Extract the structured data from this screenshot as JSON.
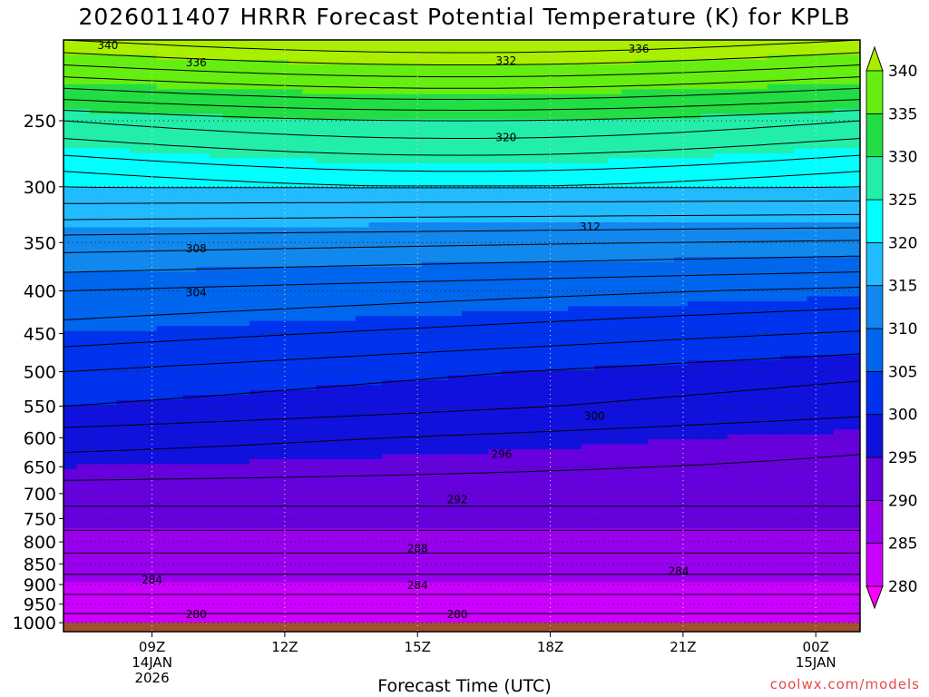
{
  "chart_data": {
    "type": "heatmap",
    "title": "2026011407 HRRR Forecast Potential Temperature (K) for KPLB",
    "xlabel": "Forecast Time (UTC)",
    "credit": "coolwx.com/models",
    "x_ticks": [
      {
        "label": "09Z",
        "date": "14JAN",
        "year": "2026",
        "hour": 9
      },
      {
        "label": "12Z",
        "date": "",
        "year": "",
        "hour": 12
      },
      {
        "label": "15Z",
        "date": "",
        "year": "",
        "hour": 15
      },
      {
        "label": "18Z",
        "date": "",
        "year": "",
        "hour": 18
      },
      {
        "label": "21Z",
        "date": "",
        "year": "",
        "hour": 21
      },
      {
        "label": "00Z",
        "date": "15JAN",
        "year": "",
        "hour": 24
      }
    ],
    "xlim": [
      7,
      25
    ],
    "y_ticks": [
      250,
      300,
      350,
      400,
      450,
      500,
      550,
      600,
      650,
      700,
      750,
      800,
      850,
      900,
      950,
      1000
    ],
    "ylim_hpa": [
      1025,
      200
    ],
    "y_scale": "log",
    "grid": "dotted",
    "colorbar": {
      "levels": [
        280,
        285,
        290,
        295,
        300,
        305,
        310,
        315,
        320,
        325,
        330,
        335,
        340
      ],
      "colors": [
        "#ff00ff",
        "#cc00ff",
        "#9900ee",
        "#6600dd",
        "#1111dd",
        "#0033ee",
        "#0066ee",
        "#1188ee",
        "#22bbff",
        "#00ffff",
        "#22eeaa",
        "#22dd44",
        "#66ee11",
        "#aaee00"
      ],
      "placement": "right"
    },
    "contour_labels": [
      {
        "value": "340",
        "hour": 8.0,
        "hpa": 203
      },
      {
        "value": "336",
        "hour": 10.0,
        "hpa": 213
      },
      {
        "value": "332",
        "hour": 17.0,
        "hpa": 212
      },
      {
        "value": "336",
        "hour": 20.0,
        "hpa": 205
      },
      {
        "value": "320",
        "hour": 17.0,
        "hpa": 262
      },
      {
        "value": "312",
        "hour": 18.9,
        "hpa": 335
      },
      {
        "value": "308",
        "hour": 10.0,
        "hpa": 356
      },
      {
        "value": "304",
        "hour": 10.0,
        "hpa": 402
      },
      {
        "value": "300",
        "hour": 19.0,
        "hpa": 565
      },
      {
        "value": "296",
        "hour": 16.9,
        "hpa": 628
      },
      {
        "value": "292",
        "hour": 15.9,
        "hpa": 712
      },
      {
        "value": "288",
        "hour": 15.0,
        "hpa": 815
      },
      {
        "value": "284",
        "hour": 9.0,
        "hpa": 888
      },
      {
        "value": "284",
        "hour": 15.0,
        "hpa": 902
      },
      {
        "value": "284",
        "hour": 20.9,
        "hpa": 868
      },
      {
        "value": "280",
        "hour": 10.0,
        "hpa": 977
      },
      {
        "value": "280",
        "hour": 15.9,
        "hpa": 977
      }
    ],
    "ground": {
      "color": "#a0522d",
      "hpa_top": 1000
    }
  }
}
